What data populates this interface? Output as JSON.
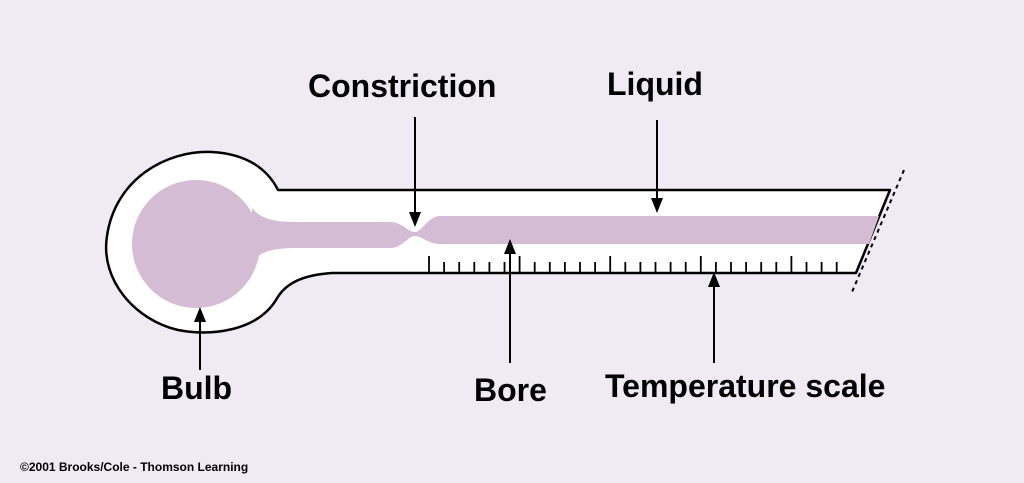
{
  "diagram": {
    "labels": {
      "constriction": "Constriction",
      "liquid": "Liquid",
      "bulb": "Bulb",
      "bore": "Bore",
      "temperature_scale": "Temperature scale"
    },
    "credit": "©2001 Brooks/Cole - Thomson Learning"
  },
  "colors": {
    "background": "#efeaf3",
    "glass": "#ffffff",
    "liquid": "#d4bcd4",
    "outline": "#000000"
  }
}
